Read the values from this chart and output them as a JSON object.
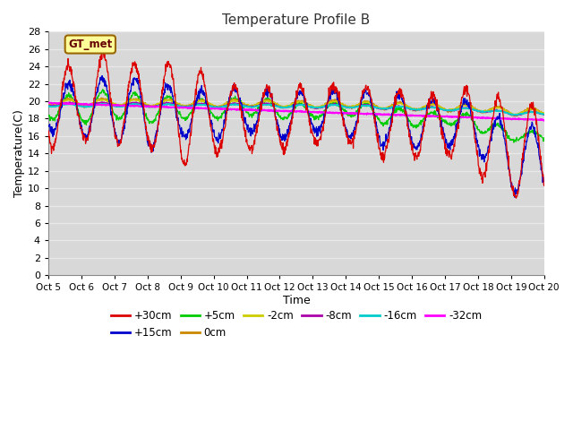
{
  "title": "Temperature Profile B",
  "xlabel": "Time",
  "ylabel": "Temperature(C)",
  "ylim": [
    0,
    28
  ],
  "yticks": [
    0,
    2,
    4,
    6,
    8,
    10,
    12,
    14,
    16,
    18,
    20,
    22,
    24,
    26,
    28
  ],
  "xtick_labels": [
    "Oct 5",
    "Oct 6",
    "Oct 7",
    "Oct 8",
    "Oct 9",
    "Oct 10",
    "Oct 11",
    "Oct 12",
    "Oct 13",
    "Oct 14",
    "Oct 15",
    "Oct 16",
    "Oct 17",
    "Oct 18",
    "Oct 19",
    "Oct 20"
  ],
  "plot_bg": "#d8d8d8",
  "fig_bg": "#ffffff",
  "grid_color": "#e8e8e8",
  "series_colors": {
    "+30cm": "#dd0000",
    "+15cm": "#0000cc",
    "+5cm": "#00cc00",
    "0cm": "#cc8800",
    "-2cm": "#cccc00",
    "-8cm": "#aa00aa",
    "-16cm": "#00cccc",
    "-32cm": "#ff00ff"
  },
  "gt_met_label": "GT_met",
  "gt_met_color": "#660000",
  "gt_met_bg": "#ffff99",
  "gt_met_border": "#996600",
  "legend_labels": [
    "+30cm",
    "+15cm",
    "+5cm",
    "0cm",
    "-2cm",
    "-8cm",
    "-16cm",
    "-32cm"
  ]
}
